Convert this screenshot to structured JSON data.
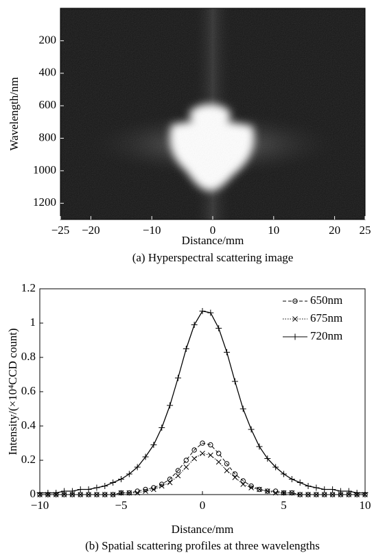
{
  "chart_data": [
    {
      "type": "image",
      "xlabel": "Distance/mm",
      "ylabel": "Wavelength/nm",
      "caption": "(a) Hyperspectral scattering image",
      "xlim": [
        -25,
        25
      ],
      "xticks": [
        {
          "value": -25,
          "label": "−25"
        },
        {
          "value": -20,
          "label": "−20"
        },
        {
          "value": -10,
          "label": "−10"
        },
        0,
        10,
        20,
        25
      ],
      "ylim": [
        1300,
        0
      ],
      "yticks": [
        200,
        400,
        600,
        800,
        1000,
        1200
      ]
    },
    {
      "type": "line",
      "xlabel": "Distance/mm",
      "ylabel": "Intensity/(×10⁴CCD count)",
      "caption": "(b) Spatial scattering profiles at three wavelengths",
      "xlim": [
        -10,
        10
      ],
      "xticks": [
        {
          "value": -10,
          "label": "−10"
        },
        {
          "value": -5,
          "label": "−5"
        },
        0,
        5,
        10
      ],
      "ylim": [
        0,
        1.2
      ],
      "yticks": [
        0,
        0.2,
        0.4,
        0.6,
        0.8,
        1.0,
        1.2
      ],
      "legend": "upper right",
      "x": [
        -10,
        -9.5,
        -9,
        -8.5,
        -8,
        -7.5,
        -7,
        -6.5,
        -6,
        -5.5,
        -5,
        -4.5,
        -4,
        -3.5,
        -3,
        -2.5,
        -2,
        -1.5,
        -1,
        -0.5,
        0,
        0.5,
        1,
        1.5,
        2,
        2.5,
        3,
        3.5,
        4,
        4.5,
        5,
        5.5,
        6,
        6.5,
        7,
        7.5,
        8,
        8.5,
        9,
        9.5,
        10
      ],
      "series": [
        {
          "name": "650nm",
          "color": "#000000",
          "marker": "o",
          "dash": "dashed",
          "values": [
            0,
            0,
            0,
            0,
            0,
            0,
            0,
            0,
            0,
            0,
            0.01,
            0.01,
            0.02,
            0.03,
            0.04,
            0.06,
            0.09,
            0.14,
            0.2,
            0.26,
            0.3,
            0.29,
            0.24,
            0.18,
            0.12,
            0.08,
            0.05,
            0.03,
            0.02,
            0.02,
            0.01,
            0.01,
            0,
            0,
            0,
            0,
            0,
            0,
            0,
            0,
            0
          ]
        },
        {
          "name": "675nm",
          "color": "#000000",
          "marker": "x",
          "dash": "dotted",
          "values": [
            0,
            0,
            0,
            0,
            0,
            0,
            0,
            0,
            0,
            0,
            0.01,
            0.01,
            0.01,
            0.02,
            0.03,
            0.05,
            0.07,
            0.11,
            0.16,
            0.21,
            0.24,
            0.23,
            0.19,
            0.14,
            0.1,
            0.06,
            0.04,
            0.03,
            0.02,
            0.01,
            0.01,
            0.01,
            0,
            0,
            0,
            0,
            0,
            0,
            0,
            0,
            0
          ]
        },
        {
          "name": "720nm",
          "color": "#000000",
          "marker": "+",
          "dash": "solid",
          "values": [
            0.01,
            0.01,
            0.01,
            0.02,
            0.02,
            0.03,
            0.03,
            0.04,
            0.05,
            0.07,
            0.09,
            0.12,
            0.16,
            0.22,
            0.29,
            0.39,
            0.52,
            0.68,
            0.85,
            0.99,
            1.07,
            1.06,
            0.97,
            0.83,
            0.66,
            0.5,
            0.38,
            0.28,
            0.21,
            0.16,
            0.12,
            0.09,
            0.07,
            0.05,
            0.04,
            0.03,
            0.03,
            0.02,
            0.02,
            0.01,
            0.01
          ]
        }
      ]
    }
  ]
}
